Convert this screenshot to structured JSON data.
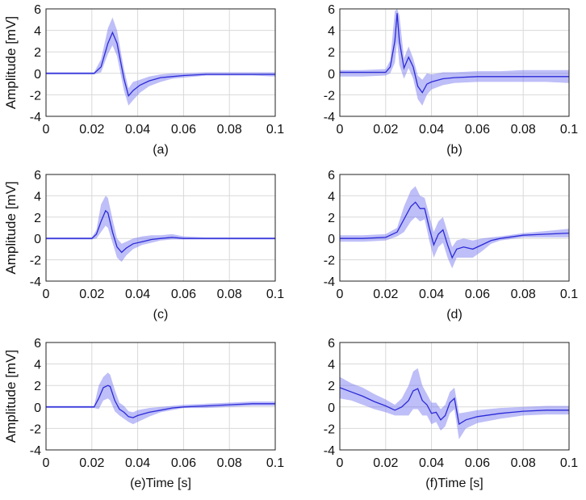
{
  "chart_data": [
    {
      "type": "line",
      "caption": "(a)",
      "ylabel": "Amplitude [mV]",
      "xlim": [
        0,
        0.1
      ],
      "ylim": [
        -4,
        6
      ],
      "xticks": [
        "0",
        "0.02",
        "0.04",
        "0.06",
        "0.08",
        "0.1"
      ],
      "yticks": [
        "-4",
        "-2",
        "0",
        "2",
        "4",
        "6"
      ],
      "grid": true,
      "series": [
        {
          "x": [
            0,
            0.021,
            0.024,
            0.027,
            0.029,
            0.031,
            0.034,
            0.036,
            0.038,
            0.041,
            0.045,
            0.05,
            0.055,
            0.06,
            0.07,
            0.08,
            0.09,
            0.1
          ],
          "mean": [
            0,
            0,
            0.6,
            2.8,
            3.8,
            2.8,
            -0.5,
            -2.1,
            -1.6,
            -1.1,
            -0.7,
            -0.4,
            -0.3,
            -0.2,
            -0.1,
            -0.1,
            -0.1,
            -0.1
          ],
          "upper": [
            0.1,
            0.1,
            1.3,
            4.2,
            5.2,
            4.0,
            0.4,
            -1.4,
            -0.8,
            -0.6,
            -0.3,
            -0.1,
            0,
            0,
            0.1,
            0.1,
            0.1,
            0.1
          ],
          "lower": [
            -0.1,
            -0.1,
            0.1,
            1.8,
            2.6,
            1.6,
            -1.6,
            -3.0,
            -2.5,
            -1.8,
            -1.2,
            -0.8,
            -0.5,
            -0.4,
            -0.2,
            -0.2,
            -0.2,
            -0.3
          ]
        }
      ]
    },
    {
      "type": "line",
      "caption": "(b)",
      "ylabel": "",
      "xlim": [
        0,
        0.1
      ],
      "ylim": [
        -4,
        6
      ],
      "xticks": [
        "0",
        "0.02",
        "0.04",
        "0.06",
        "0.08",
        "0.1"
      ],
      "yticks": [
        "-4",
        "-2",
        "0",
        "2",
        "4",
        "6"
      ],
      "grid": true,
      "series": [
        {
          "x": [
            0,
            0.01,
            0.02,
            0.022,
            0.024,
            0.025,
            0.026,
            0.028,
            0.03,
            0.032,
            0.034,
            0.036,
            0.038,
            0.04,
            0.045,
            0.05,
            0.06,
            0.07,
            0.08,
            0.09,
            0.1
          ],
          "mean": [
            0.1,
            0.1,
            0.1,
            0.6,
            3.0,
            5.6,
            3.0,
            0.5,
            1.5,
            0.6,
            -1.2,
            -1.8,
            -1.0,
            -0.8,
            -0.5,
            -0.4,
            -0.3,
            -0.3,
            -0.3,
            -0.3,
            -0.3
          ],
          "upper": [
            0.3,
            0.3,
            0.4,
            1.2,
            5.8,
            6.0,
            5.4,
            1.4,
            2.5,
            1.4,
            -0.2,
            -0.6,
            0,
            -0.1,
            0.1,
            0.1,
            0.2,
            0.2,
            0.3,
            0.3,
            0.3
          ],
          "lower": [
            -0.3,
            -0.3,
            -0.2,
            0,
            1.0,
            3.0,
            0.8,
            -0.5,
            0.5,
            -0.5,
            -2.4,
            -3.0,
            -2.0,
            -1.5,
            -1.1,
            -0.9,
            -0.8,
            -0.8,
            -0.8,
            -0.8,
            -0.9
          ]
        }
      ]
    },
    {
      "type": "line",
      "caption": "(c)",
      "ylabel": "Amplitude [mV]",
      "xlim": [
        0,
        0.1
      ],
      "ylim": [
        -4,
        6
      ],
      "xticks": [
        "0",
        "0.02",
        "0.04",
        "0.06",
        "0.08",
        "0.1"
      ],
      "yticks": [
        "-4",
        "-2",
        "0",
        "2",
        "4",
        "6"
      ],
      "grid": true,
      "series": [
        {
          "x": [
            0,
            0.02,
            0.022,
            0.024,
            0.026,
            0.027,
            0.029,
            0.031,
            0.033,
            0.035,
            0.038,
            0.042,
            0.046,
            0.05,
            0.055,
            0.06,
            0.07,
            0.08,
            0.09,
            0.1
          ],
          "mean": [
            0,
            0,
            0.4,
            1.6,
            2.6,
            2.4,
            0.6,
            -0.8,
            -1.3,
            -0.9,
            -0.5,
            -0.3,
            -0.1,
            0,
            0.1,
            0,
            0,
            0,
            0,
            0
          ],
          "upper": [
            0.1,
            0.1,
            0.8,
            3.2,
            4.0,
            3.8,
            1.8,
            0,
            -0.5,
            -0.3,
            0,
            0.2,
            0.3,
            0.3,
            0.4,
            0.2,
            0.1,
            0.1,
            0.1,
            0.1
          ],
          "lower": [
            -0.1,
            -0.1,
            0,
            0.6,
            1.2,
            1.0,
            -0.4,
            -1.8,
            -2.2,
            -1.6,
            -1.0,
            -0.6,
            -0.4,
            -0.2,
            -0.1,
            -0.1,
            -0.1,
            -0.1,
            -0.1,
            -0.1
          ]
        }
      ]
    },
    {
      "type": "line",
      "caption": "(d)",
      "ylabel": "",
      "xlim": [
        0,
        0.1
      ],
      "ylim": [
        -4,
        6
      ],
      "xticks": [
        "0",
        "0.02",
        "0.04",
        "0.06",
        "0.08",
        "0.1"
      ],
      "yticks": [
        "-4",
        "-2",
        "0",
        "2",
        "4",
        "6"
      ],
      "grid": true,
      "series": [
        {
          "x": [
            0,
            0.01,
            0.02,
            0.025,
            0.028,
            0.031,
            0.033,
            0.035,
            0.037,
            0.039,
            0.041,
            0.043,
            0.045,
            0.047,
            0.049,
            0.051,
            0.054,
            0.058,
            0.062,
            0.066,
            0.07,
            0.08,
            0.09,
            0.1
          ],
          "mean": [
            0,
            0,
            0.1,
            0.6,
            1.8,
            3.0,
            3.4,
            2.8,
            2.8,
            1.0,
            -0.6,
            0.4,
            0.8,
            -0.6,
            -1.8,
            -1.0,
            -0.8,
            -1.0,
            -0.6,
            -0.2,
            0,
            0.3,
            0.4,
            0.5
          ],
          "upper": [
            0.3,
            0.3,
            0.4,
            1.0,
            3.0,
            4.5,
            4.9,
            4.0,
            3.8,
            2.2,
            0.6,
            1.6,
            2.0,
            0.6,
            -0.8,
            -0.2,
            0,
            -0.2,
            0,
            0.1,
            0.2,
            0.5,
            0.7,
            0.9
          ],
          "lower": [
            -0.3,
            -0.3,
            -0.2,
            0.2,
            0.6,
            1.6,
            2.0,
            1.6,
            1.8,
            -0.2,
            -1.8,
            -0.8,
            -0.4,
            -1.8,
            -2.8,
            -1.8,
            -1.8,
            -1.8,
            -1.2,
            -0.5,
            -0.2,
            0.1,
            0.1,
            0.1
          ]
        }
      ]
    },
    {
      "type": "line",
      "caption": "(e)Time [s]",
      "ylabel": "Amplitude [mV]",
      "xlim": [
        0,
        0.1
      ],
      "ylim": [
        -4,
        6
      ],
      "xticks": [
        "0",
        "0.02",
        "0.04",
        "0.06",
        "0.08",
        "0.1"
      ],
      "yticks": [
        "-4",
        "-2",
        "0",
        "2",
        "4",
        "6"
      ],
      "grid": true,
      "series": [
        {
          "x": [
            0.0,
            0.021,
            0.023,
            0.025,
            0.027,
            0.028,
            0.03,
            0.032,
            0.034,
            0.036,
            0.038,
            0.04,
            0.045,
            0.05,
            0.055,
            0.06,
            0.07,
            0.08,
            0.09,
            0.1
          ],
          "mean": [
            0,
            0,
            0.8,
            1.8,
            2.0,
            1.9,
            0.6,
            -0.2,
            -0.5,
            -0.9,
            -1.0,
            -0.8,
            -0.5,
            -0.3,
            -0.1,
            0,
            0.1,
            0.2,
            0.3,
            0.3
          ],
          "upper": [
            0.1,
            0.1,
            2.0,
            2.8,
            3.2,
            3.0,
            1.6,
            0.4,
            0.1,
            -0.4,
            -0.5,
            -0.3,
            -0.1,
            0,
            0.1,
            0.2,
            0.3,
            0.4,
            0.5,
            0.5
          ],
          "lower": [
            -0.1,
            -0.1,
            -0.2,
            0.6,
            0.8,
            0.6,
            -0.4,
            -0.8,
            -1.1,
            -1.4,
            -1.6,
            -1.4,
            -0.9,
            -0.5,
            -0.3,
            -0.1,
            -0.1,
            0,
            0.1,
            0.1
          ]
        }
      ]
    },
    {
      "type": "line",
      "caption": "(f)Time [s]",
      "ylabel": "",
      "xlim": [
        0,
        0.1
      ],
      "ylim": [
        -4,
        6
      ],
      "xticks": [
        "0",
        "0.02",
        "0.04",
        "0.06",
        "0.08",
        "0.1"
      ],
      "yticks": [
        "-4",
        "-2",
        "0",
        "2",
        "4",
        "6"
      ],
      "grid": true,
      "series": [
        {
          "x": [
            0,
            0.005,
            0.01,
            0.015,
            0.02,
            0.024,
            0.027,
            0.03,
            0.032,
            0.034,
            0.036,
            0.038,
            0.04,
            0.042,
            0.044,
            0.046,
            0.048,
            0.05,
            0.052,
            0.055,
            0.06,
            0.07,
            0.08,
            0.09,
            0.1
          ],
          "mean": [
            1.8,
            1.4,
            1.0,
            0.5,
            0.1,
            -0.3,
            0,
            0.6,
            1.5,
            1.7,
            0.6,
            0.2,
            -0.6,
            -0.5,
            -1.2,
            -0.8,
            0.4,
            0.8,
            -1.6,
            -1.2,
            -0.9,
            -0.6,
            -0.4,
            -0.3,
            -0.3
          ],
          "upper": [
            2.8,
            2.2,
            1.8,
            1.2,
            0.7,
            0.2,
            0.8,
            2.0,
            3.3,
            3.6,
            2.0,
            1.2,
            0.4,
            0.4,
            -0.2,
            0.2,
            1.4,
            1.8,
            -0.6,
            -0.5,
            -0.3,
            -0.1,
            0,
            0.1,
            0.1
          ],
          "lower": [
            0.8,
            0.6,
            0.2,
            -0.2,
            -0.5,
            -0.8,
            -0.8,
            -0.8,
            -0.2,
            -0.2,
            -0.8,
            -0.8,
            -1.6,
            -1.4,
            -2.2,
            -1.8,
            -0.6,
            -0.2,
            -3.0,
            -2.0,
            -1.5,
            -1.1,
            -0.8,
            -0.7,
            -0.7
          ]
        }
      ]
    }
  ],
  "colors": {
    "line": "#2a2ad8",
    "band": "#6f6ff0",
    "grid": "#d9d9d9",
    "axis": "#222222"
  }
}
